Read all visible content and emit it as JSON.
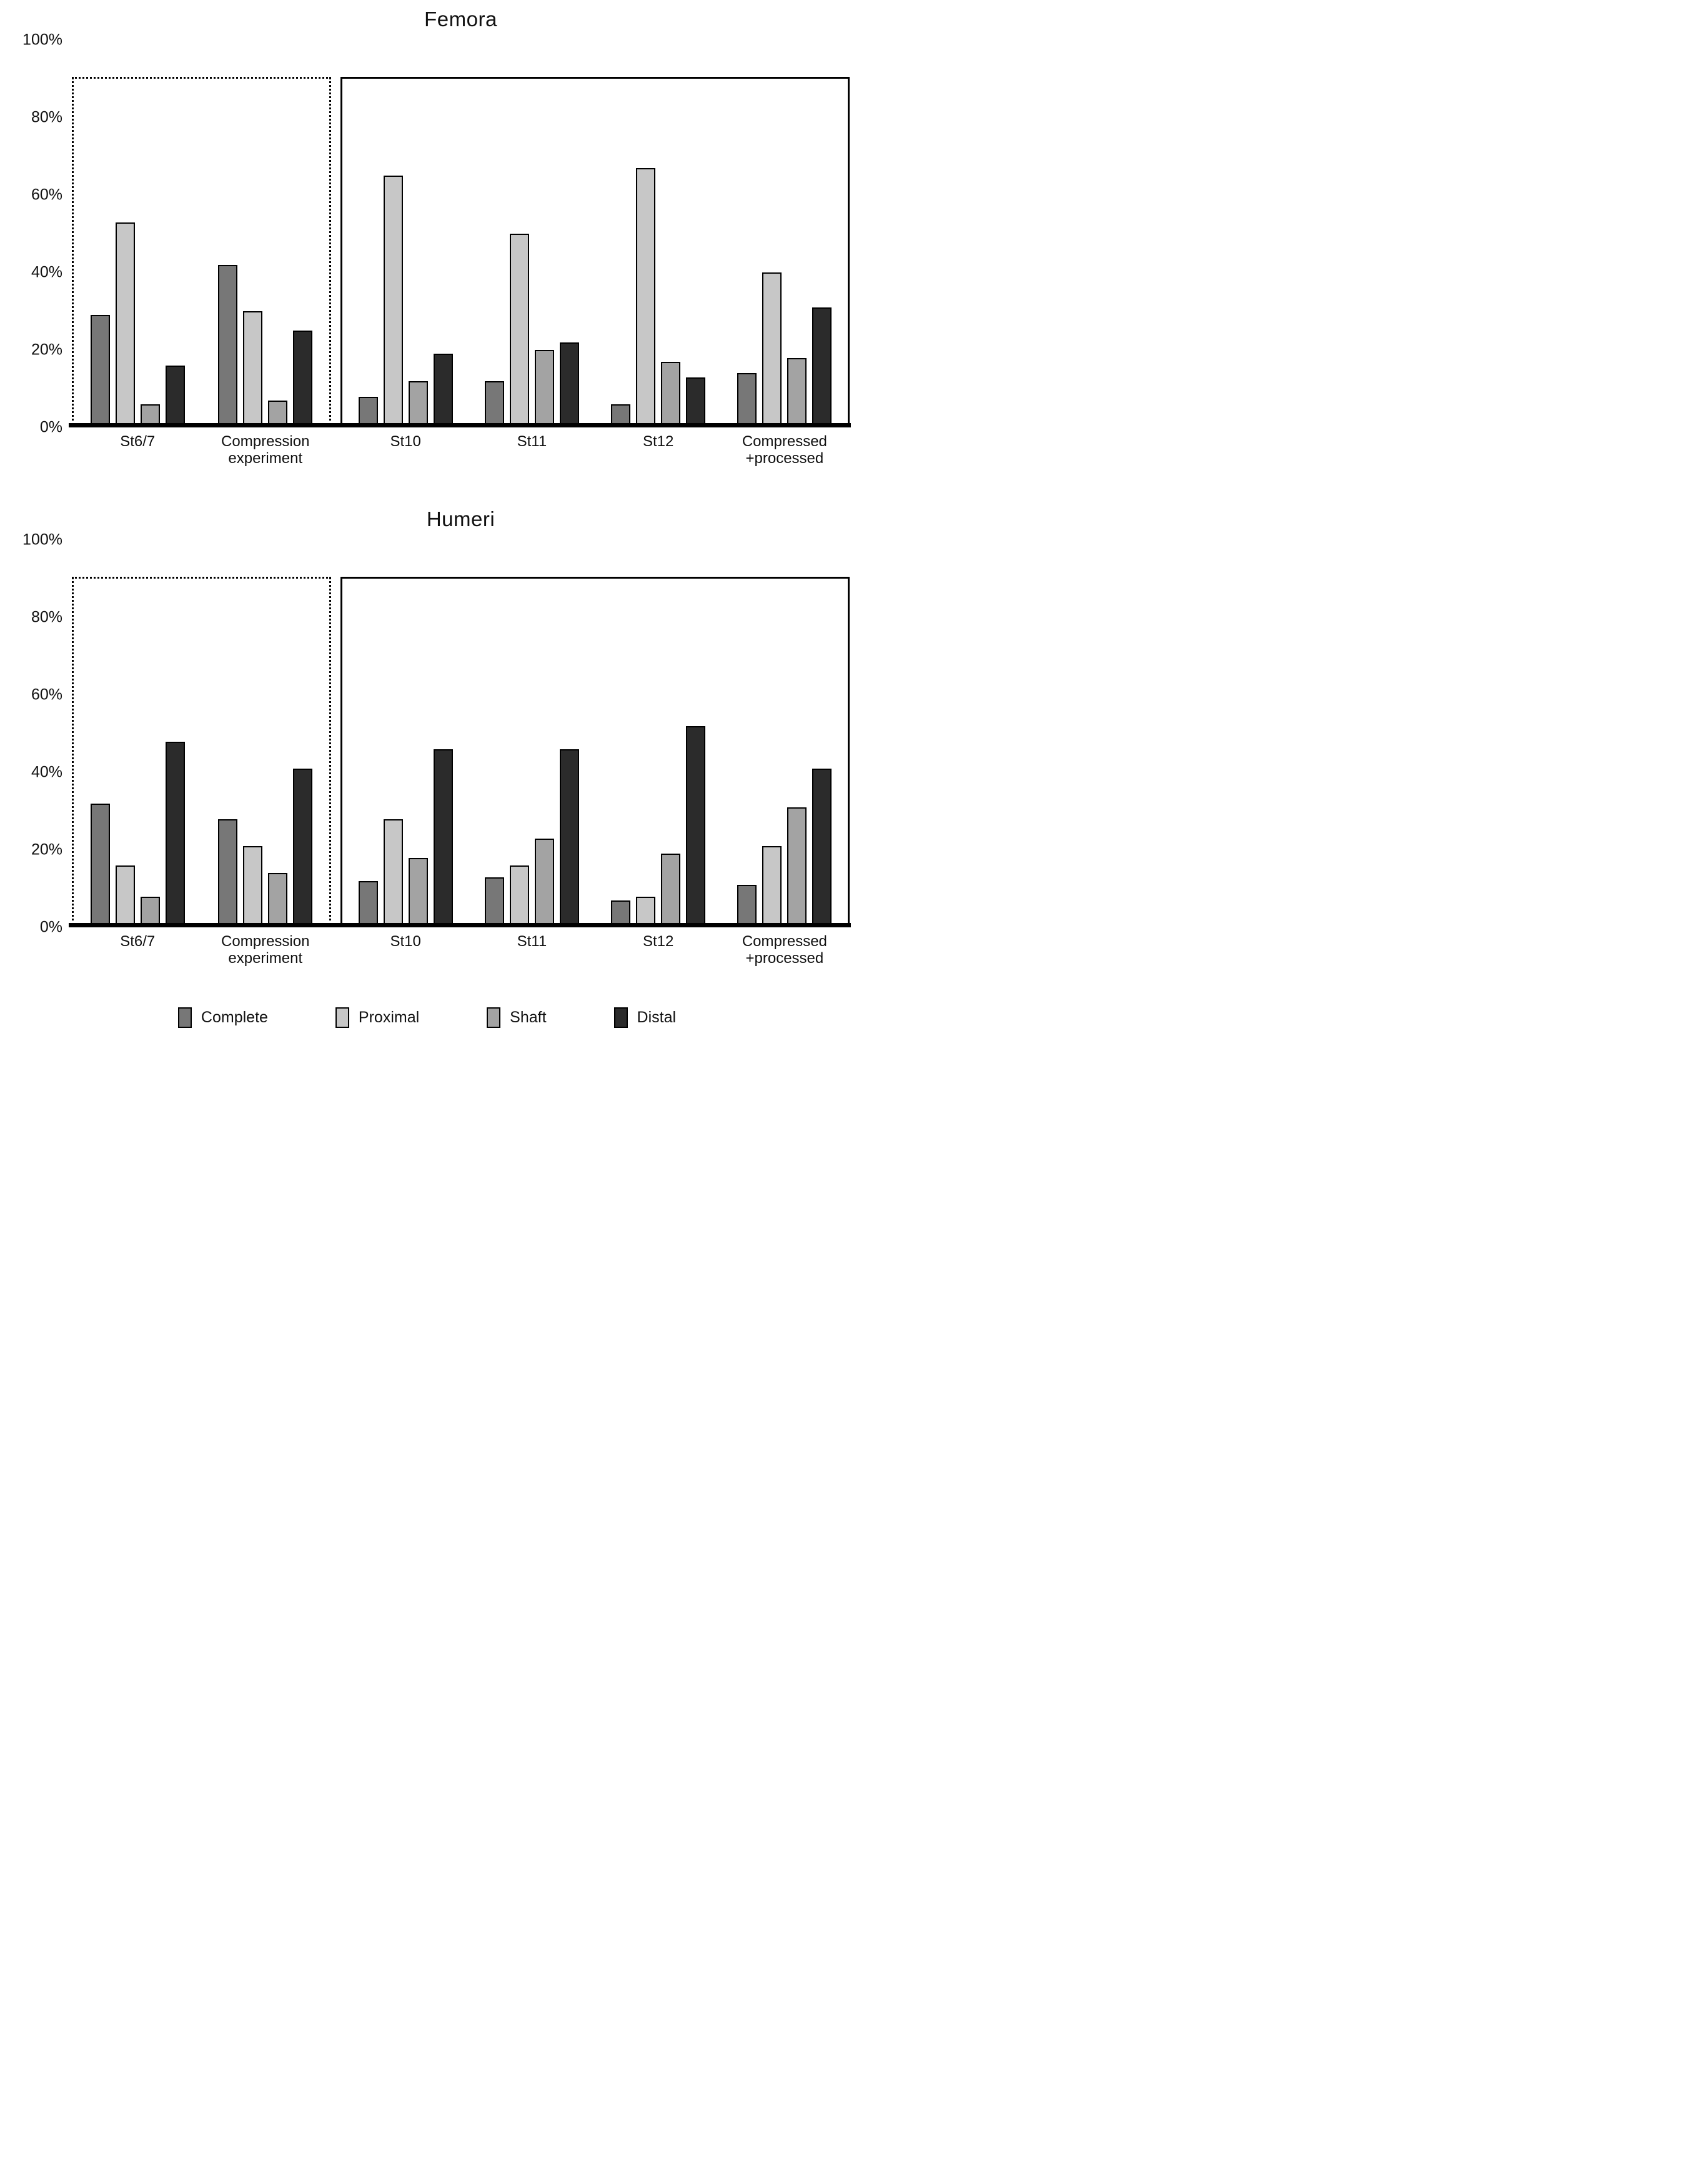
{
  "figure": {
    "background_color": "#ffffff",
    "text_color": "#111111"
  },
  "legend": {
    "items": [
      {
        "label": "Complete",
        "color": "#777777"
      },
      {
        "label": "Proximal",
        "color": "#c7c7c7"
      },
      {
        "label": "Shaft",
        "color": "#a3a3a3"
      },
      {
        "label": "Distal",
        "color": "#2b2b2b"
      }
    ]
  },
  "chart_data": [
    {
      "type": "bar",
      "title": "Femora",
      "ylim": [
        0,
        100
      ],
      "grid": false,
      "legend_position": "shared-bottom",
      "yticks": [
        {
          "value": 100,
          "label": "100%"
        },
        {
          "value": 80,
          "label": "80%"
        },
        {
          "value": 60,
          "label": "60%"
        },
        {
          "value": 40,
          "label": "40%"
        },
        {
          "value": 20,
          "label": "20%"
        },
        {
          "value": 0,
          "label": "0%"
        }
      ],
      "series_names": [
        "Complete",
        "Proximal",
        "Shaft",
        "Distal"
      ],
      "panels": [
        {
          "border": "dotted",
          "box_top_percent": 90,
          "categories": [
            "St6/7",
            "Compression experiment"
          ],
          "category_label_lines": [
            [
              "St6/7"
            ],
            [
              "Compression",
              "experiment"
            ]
          ],
          "series": [
            {
              "name": "Complete",
              "values": [
                28,
                41
              ]
            },
            {
              "name": "Proximal",
              "values": [
                52,
                29
              ]
            },
            {
              "name": "Shaft",
              "values": [
                5,
                6
              ]
            },
            {
              "name": "Distal",
              "values": [
                15,
                24
              ]
            }
          ]
        },
        {
          "border": "solid",
          "box_top_percent": 90,
          "categories": [
            "St10",
            "St11",
            "St12",
            "Compressed +processed"
          ],
          "category_label_lines": [
            [
              "St10"
            ],
            [
              "St11"
            ],
            [
              "St12"
            ],
            [
              "Compressed",
              "+processed"
            ]
          ],
          "series": [
            {
              "name": "Complete",
              "values": [
                7,
                11,
                5,
                13
              ]
            },
            {
              "name": "Proximal",
              "values": [
                64,
                49,
                66,
                39
              ]
            },
            {
              "name": "Shaft",
              "values": [
                11,
                19,
                16,
                17
              ]
            },
            {
              "name": "Distal",
              "values": [
                18,
                21,
                12,
                30
              ]
            }
          ]
        }
      ]
    },
    {
      "type": "bar",
      "title": "Humeri",
      "ylim": [
        0,
        100
      ],
      "grid": false,
      "legend_position": "shared-bottom",
      "yticks": [
        {
          "value": 100,
          "label": "100%"
        },
        {
          "value": 80,
          "label": "80%"
        },
        {
          "value": 60,
          "label": "60%"
        },
        {
          "value": 40,
          "label": "40%"
        },
        {
          "value": 20,
          "label": "20%"
        },
        {
          "value": 0,
          "label": "0%"
        }
      ],
      "series_names": [
        "Complete",
        "Proximal",
        "Shaft",
        "Distal"
      ],
      "panels": [
        {
          "border": "dotted",
          "box_top_percent": 90,
          "categories": [
            "St6/7",
            "Compression experiment"
          ],
          "category_label_lines": [
            [
              "St6/7"
            ],
            [
              "Compression",
              "experiment"
            ]
          ],
          "series": [
            {
              "name": "Complete",
              "values": [
                31,
                27
              ]
            },
            {
              "name": "Proximal",
              "values": [
                15,
                20
              ]
            },
            {
              "name": "Shaft",
              "values": [
                7,
                13
              ]
            },
            {
              "name": "Distal",
              "values": [
                47,
                40
              ]
            }
          ]
        },
        {
          "border": "solid",
          "box_top_percent": 90,
          "categories": [
            "St10",
            "St11",
            "St12",
            "Compressed +processed"
          ],
          "category_label_lines": [
            [
              "St10"
            ],
            [
              "St11"
            ],
            [
              "St12"
            ],
            [
              "Compressed",
              "+processed"
            ]
          ],
          "series": [
            {
              "name": "Complete",
              "values": [
                11,
                12,
                6,
                10
              ]
            },
            {
              "name": "Proximal",
              "values": [
                27,
                15,
                7,
                20
              ]
            },
            {
              "name": "Shaft",
              "values": [
                17,
                22,
                18,
                30
              ]
            },
            {
              "name": "Distal",
              "values": [
                45,
                45,
                51,
                40
              ]
            }
          ]
        }
      ]
    }
  ]
}
